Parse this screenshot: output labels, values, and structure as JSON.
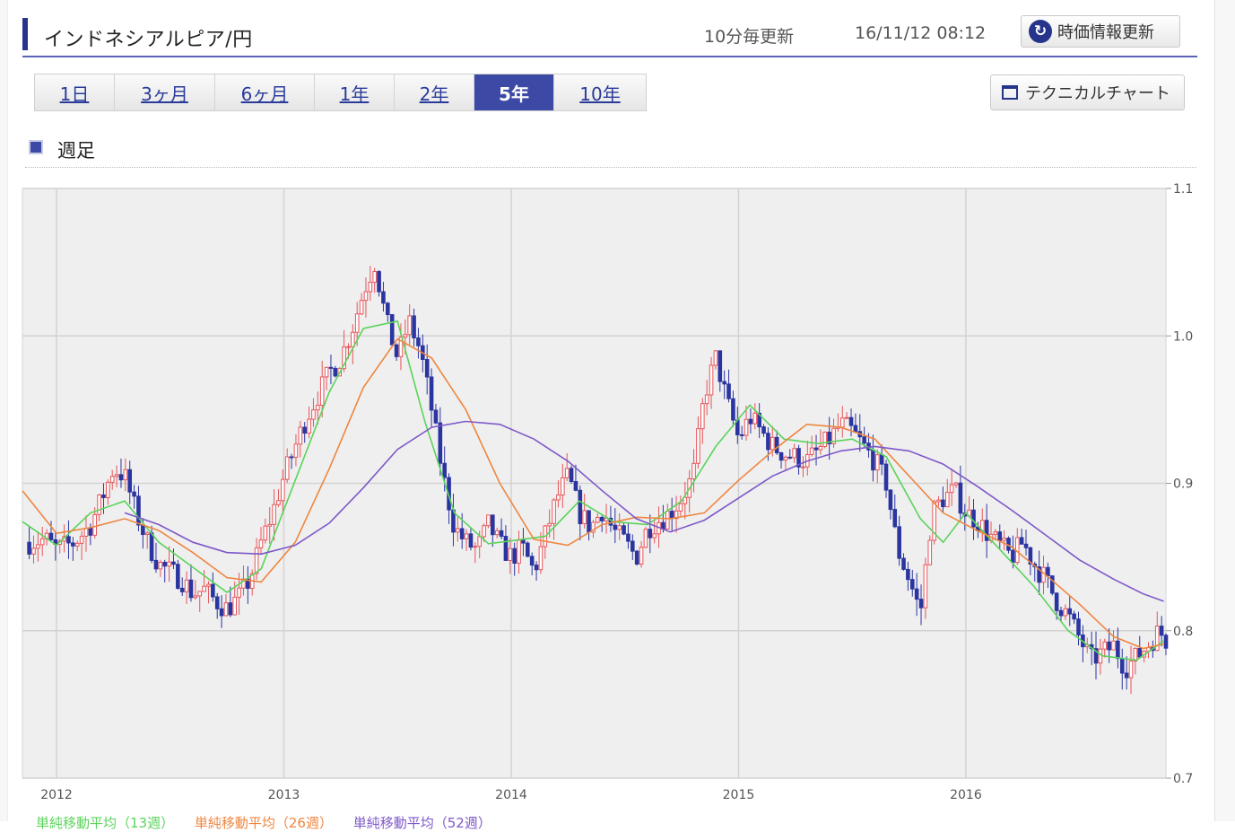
{
  "header": {
    "title": "インドネシアルピア/円",
    "update_frequency": "10分毎更新",
    "timestamp": "16/11/12 08:12",
    "refresh_label": "時価情報更新",
    "refresh_icon": "refresh-icon"
  },
  "tabs": [
    {
      "label": "1日",
      "active": false
    },
    {
      "label": "3ヶ月",
      "active": false
    },
    {
      "label": "6ヶ月",
      "active": false
    },
    {
      "label": "1年",
      "active": false
    },
    {
      "label": "2年",
      "active": false
    },
    {
      "label": "5年",
      "active": true
    },
    {
      "label": "10年",
      "active": false
    }
  ],
  "technical_chart_label": "テクニカルチャート",
  "section_label": "週足",
  "colors": {
    "accent": "#27348b",
    "up_candle": "#e8555a",
    "down_candle": "#2a35a0",
    "ma13": "#5bd35b",
    "ma26": "#ee8640",
    "ma52": "#7d58c9"
  },
  "legend": [
    "単純移動平均（13週）",
    "単純移動平均（26週）",
    "単純移動平均（52週）"
  ],
  "chart_data": {
    "type": "candlestick",
    "interval": "weekly",
    "x_tick_labels": [
      "2012",
      "2013",
      "2014",
      "2015",
      "2016"
    ],
    "x_range": [
      2011.85,
      2016.88
    ],
    "y_tick_labels": [
      "1.1",
      "1.0",
      "0.9",
      "0.8",
      "0.7"
    ],
    "ylim": [
      0.7,
      1.1
    ],
    "grid": true,
    "series": [
      {
        "name": "単純移動平均（13週）",
        "color": "#5bd35b",
        "x": [
          2011.85,
          2012.0,
          2012.15,
          2012.3,
          2012.45,
          2012.6,
          2012.75,
          2012.9,
          2013.05,
          2013.2,
          2013.35,
          2013.5,
          2013.62,
          2013.75,
          2013.9,
          2014.0,
          2014.15,
          2014.3,
          2014.45,
          2014.6,
          2014.75,
          2014.9,
          2015.05,
          2015.2,
          2015.35,
          2015.5,
          2015.65,
          2015.8,
          2015.9,
          2016.0,
          2016.15,
          2016.3,
          2016.45,
          2016.6,
          2016.75,
          2016.87
        ],
        "values": [
          0.874,
          0.858,
          0.88,
          0.888,
          0.86,
          0.843,
          0.826,
          0.842,
          0.902,
          0.962,
          1.005,
          1.01,
          0.942,
          0.88,
          0.859,
          0.861,
          0.864,
          0.888,
          0.874,
          0.872,
          0.888,
          0.925,
          0.953,
          0.93,
          0.927,
          0.93,
          0.918,
          0.876,
          0.86,
          0.88,
          0.855,
          0.83,
          0.8,
          0.783,
          0.78,
          0.793
        ]
      },
      {
        "name": "単純移動平均（26週）",
        "color": "#ee8640",
        "x": [
          2011.85,
          2012.0,
          2012.15,
          2012.3,
          2012.45,
          2012.6,
          2012.75,
          2012.9,
          2013.05,
          2013.2,
          2013.35,
          2013.5,
          2013.65,
          2013.8,
          2013.95,
          2014.1,
          2014.25,
          2014.4,
          2014.55,
          2014.7,
          2014.85,
          2015.0,
          2015.15,
          2015.3,
          2015.45,
          2015.6,
          2015.75,
          2015.9,
          2016.05,
          2016.2,
          2016.35,
          2016.5,
          2016.65,
          2016.78,
          2016.87
        ],
        "values": [
          0.895,
          0.866,
          0.87,
          0.876,
          0.868,
          0.853,
          0.836,
          0.833,
          0.86,
          0.91,
          0.965,
          0.998,
          0.985,
          0.95,
          0.9,
          0.862,
          0.858,
          0.872,
          0.877,
          0.876,
          0.88,
          0.902,
          0.922,
          0.94,
          0.938,
          0.93,
          0.905,
          0.88,
          0.868,
          0.857,
          0.838,
          0.818,
          0.796,
          0.788,
          0.791
        ]
      },
      {
        "name": "単純移動平均（52週）",
        "color": "#7d58c9",
        "x": [
          2012.3,
          2012.45,
          2012.6,
          2012.75,
          2012.9,
          2013.05,
          2013.2,
          2013.35,
          2013.5,
          2013.65,
          2013.8,
          2013.95,
          2014.1,
          2014.25,
          2014.4,
          2014.55,
          2014.7,
          2014.85,
          2015.0,
          2015.15,
          2015.3,
          2015.45,
          2015.6,
          2015.75,
          2015.9,
          2016.05,
          2016.2,
          2016.35,
          2016.5,
          2016.65,
          2016.78,
          2016.87
        ],
        "values": [
          0.88,
          0.872,
          0.86,
          0.853,
          0.852,
          0.858,
          0.873,
          0.897,
          0.923,
          0.938,
          0.942,
          0.94,
          0.93,
          0.915,
          0.895,
          0.876,
          0.867,
          0.875,
          0.89,
          0.905,
          0.915,
          0.922,
          0.925,
          0.922,
          0.913,
          0.898,
          0.882,
          0.865,
          0.848,
          0.835,
          0.825,
          0.82
        ]
      },
      {
        "name": "close",
        "color": "#c24a55",
        "x": [
          2011.88,
          2011.95,
          2012.0,
          2012.08,
          2012.15,
          2012.2,
          2012.25,
          2012.3,
          2012.35,
          2012.4,
          2012.45,
          2012.5,
          2012.55,
          2012.6,
          2012.65,
          2012.7,
          2012.75,
          2012.8,
          2012.85,
          2012.9,
          2012.95,
          2013.0,
          2013.05,
          2013.1,
          2013.15,
          2013.2,
          2013.25,
          2013.3,
          2013.35,
          2013.4,
          2013.45,
          2013.5,
          2013.55,
          2013.6,
          2013.65,
          2013.7,
          2013.75,
          2013.8,
          2013.85,
          2013.9,
          2013.95,
          2014.0,
          2014.05,
          2014.1,
          2014.15,
          2014.2,
          2014.25,
          2014.3,
          2014.35,
          2014.4,
          2014.45,
          2014.5,
          2014.55,
          2014.6,
          2014.65,
          2014.7,
          2014.75,
          2014.8,
          2014.85,
          2014.9,
          2014.95,
          2015.0,
          2015.05,
          2015.1,
          2015.15,
          2015.2,
          2015.25,
          2015.3,
          2015.35,
          2015.4,
          2015.45,
          2015.5,
          2015.55,
          2015.6,
          2015.65,
          2015.7,
          2015.75,
          2015.8,
          2015.85,
          2015.9,
          2015.95,
          2016.0,
          2016.05,
          2016.1,
          2016.15,
          2016.2,
          2016.25,
          2016.3,
          2016.35,
          2016.4,
          2016.45,
          2016.5,
          2016.55,
          2016.6,
          2016.65,
          2016.7,
          2016.75,
          2016.8,
          2016.85,
          2016.88
        ],
        "values": [
          0.86,
          0.862,
          0.855,
          0.86,
          0.872,
          0.89,
          0.91,
          0.905,
          0.88,
          0.86,
          0.845,
          0.84,
          0.835,
          0.825,
          0.828,
          0.82,
          0.815,
          0.822,
          0.835,
          0.86,
          0.88,
          0.905,
          0.925,
          0.945,
          0.96,
          0.975,
          0.985,
          1.005,
          1.03,
          1.05,
          1.01,
          0.985,
          1.01,
          0.99,
          0.95,
          0.905,
          0.87,
          0.86,
          0.855,
          0.872,
          0.858,
          0.85,
          0.856,
          0.84,
          0.865,
          0.89,
          0.905,
          0.88,
          0.87,
          0.882,
          0.868,
          0.86,
          0.85,
          0.87,
          0.875,
          0.88,
          0.89,
          0.905,
          0.96,
          0.985,
          0.955,
          0.93,
          0.945,
          0.935,
          0.925,
          0.92,
          0.918,
          0.915,
          0.922,
          0.93,
          0.94,
          0.935,
          0.925,
          0.915,
          0.9,
          0.855,
          0.835,
          0.812,
          0.88,
          0.89,
          0.895,
          0.88,
          0.875,
          0.865,
          0.858,
          0.85,
          0.86,
          0.845,
          0.835,
          0.82,
          0.81,
          0.795,
          0.78,
          0.785,
          0.79,
          0.775,
          0.782,
          0.79,
          0.8,
          0.794
        ]
      }
    ]
  }
}
